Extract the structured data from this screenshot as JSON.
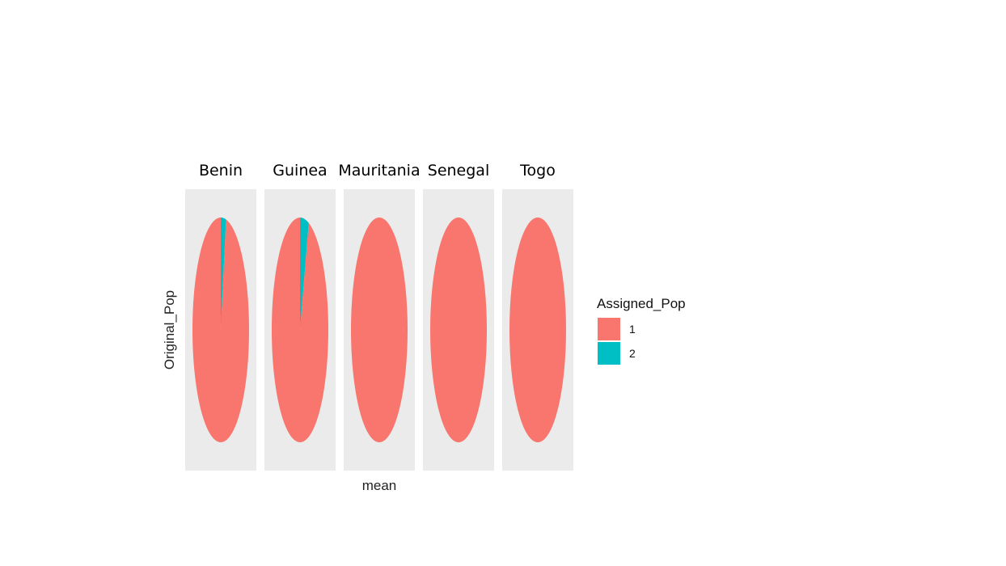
{
  "chart_data": {
    "type": "pie",
    "facet_variable": "Original_Pop",
    "facets": [
      {
        "label": "Benin",
        "slices": [
          {
            "group": "1",
            "value": 0.97
          },
          {
            "group": "2",
            "value": 0.03
          }
        ]
      },
      {
        "label": "Guinea",
        "slices": [
          {
            "group": "1",
            "value": 0.95
          },
          {
            "group": "2",
            "value": 0.05
          }
        ]
      },
      {
        "label": "Mauritania",
        "slices": [
          {
            "group": "1",
            "value": 1.0
          },
          {
            "group": "2",
            "value": 0.0
          }
        ]
      },
      {
        "label": "Senegal",
        "slices": [
          {
            "group": "1",
            "value": 1.0
          },
          {
            "group": "2",
            "value": 0.0
          }
        ]
      },
      {
        "label": "Togo",
        "slices": [
          {
            "group": "1",
            "value": 1.0
          },
          {
            "group": "2",
            "value": 0.0
          }
        ]
      }
    ],
    "xlabel": "mean",
    "ylabel": "Original_Pop",
    "legend": {
      "title": "Assigned_Pop",
      "position": "right",
      "items": [
        {
          "label": "1",
          "color": "#F8766D"
        },
        {
          "label": "2",
          "color": "#00BFC4"
        }
      ]
    },
    "panel_background": "#EBEBEB",
    "grid": false
  }
}
